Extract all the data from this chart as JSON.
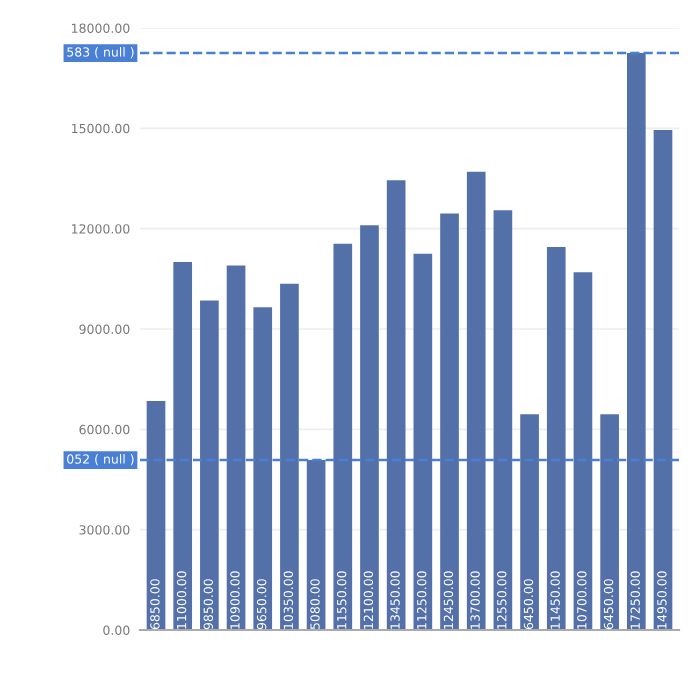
{
  "chart_data": {
    "type": "bar",
    "categories": [
      null,
      null,
      null,
      null,
      null,
      null,
      null,
      null,
      null,
      null,
      null,
      null,
      null,
      null,
      null,
      null,
      null,
      null,
      null,
      null
    ],
    "series": [
      {
        "color": "#5470a8",
        "values": [
          6850,
          11000,
          9850,
          10900,
          9650,
          10350,
          5080,
          11550,
          12100,
          13450,
          11250,
          12450,
          13700,
          12550,
          6450,
          11450,
          10700,
          6450,
          17250,
          14950
        ],
        "value_labels": [
          "6850.00",
          "11000.00",
          "9850.00",
          "10900.00",
          "9650.00",
          "10350.00",
          "5080.00",
          "11550.00",
          "12100.00",
          "13450.00",
          "11250.00",
          "12450.00",
          "13700.00",
          "12550.00",
          "6450.00",
          "11450.00",
          "10700.00",
          "6450.00",
          "17250.00",
          "14950.00"
        ]
      }
    ],
    "ylim": [
      0,
      18000
    ],
    "yticks": [
      {
        "value": 0,
        "label": "0.00"
      },
      {
        "value": 3000,
        "label": "3000.00"
      },
      {
        "value": 6000,
        "label": "6000.00"
      },
      {
        "value": 9000,
        "label": "9000.00"
      },
      {
        "value": 12000,
        "label": "12000.00"
      },
      {
        "value": 15000,
        "label": "15000.00"
      },
      {
        "value": 18000,
        "label": "18000.00"
      }
    ],
    "grid": "y",
    "ref_lines": [
      {
        "axis": "y",
        "value": 17250,
        "label": "583 ( null )",
        "color": "#4a7fd6",
        "line_style": "dashed"
      },
      {
        "axis": "y",
        "value": 5080,
        "label": "052 ( null )",
        "color": "#4a7fd6",
        "line_style": "dashed"
      }
    ]
  }
}
